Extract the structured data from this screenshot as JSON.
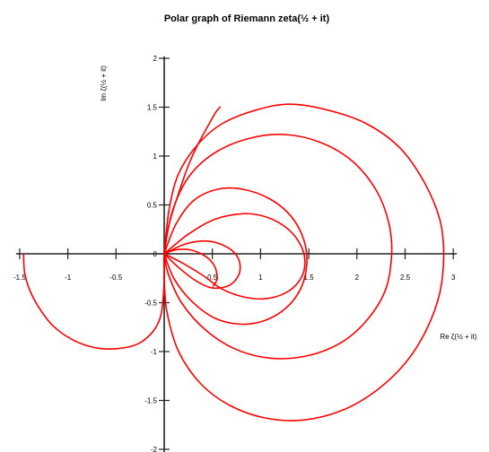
{
  "chart_data": {
    "type": "line",
    "title": "Polar graph of Riemann zeta(½ + it)",
    "xlabel": "Re ζ(½ + it)",
    "ylabel": "Im ζ(½ + it)",
    "xlim": [
      -1.5,
      3
    ],
    "ylim": [
      -2,
      2
    ],
    "xticks": [
      -1.5,
      -1,
      -0.5,
      0,
      0.5,
      1,
      1.5,
      2,
      2.5,
      3
    ],
    "yticks": [
      -2,
      -1.5,
      -1,
      -0.5,
      0,
      0.5,
      1,
      1.5,
      2
    ],
    "xtick_labels": [
      "-1.5",
      "-1",
      "-0.5",
      "",
      "0.5",
      "1",
      "1.5",
      "2",
      "2.5",
      "3"
    ],
    "ytick_labels": [
      "-2",
      "-1.5",
      "-1",
      "-0.5",
      "0",
      "0.5",
      "1",
      "1.5",
      "2"
    ],
    "grid": false,
    "legend": "none",
    "series": [
      {
        "color": "#ff0000",
        "t_range": [
          0,
          34
        ],
        "points": [
          [
            -1.46,
            0.0
          ],
          [
            -1.45,
            -0.18
          ],
          [
            -1.4,
            -0.36
          ],
          [
            -1.3,
            -0.55
          ],
          [
            -1.15,
            -0.74
          ],
          [
            -0.95,
            -0.88
          ],
          [
            -0.72,
            -0.96
          ],
          [
            -0.48,
            -0.97
          ],
          [
            -0.27,
            -0.92
          ],
          [
            -0.12,
            -0.8
          ],
          [
            -0.04,
            -0.65
          ],
          [
            -0.01,
            -0.45
          ],
          [
            0.0,
            -0.25
          ],
          [
            0.0,
            0.0
          ],
          [
            0.05,
            0.3
          ],
          [
            0.15,
            0.62
          ],
          [
            0.25,
            0.9
          ],
          [
            0.35,
            1.12
          ],
          [
            0.45,
            1.3
          ],
          [
            0.53,
            1.44
          ],
          [
            0.58,
            1.5
          ]
        ]
      },
      {
        "color": "#ff0000",
        "points": [
          [
            0.0,
            0.0
          ],
          [
            0.05,
            0.45
          ],
          [
            0.15,
            0.82
          ],
          [
            0.35,
            1.12
          ],
          [
            0.6,
            1.33
          ],
          [
            0.95,
            1.47
          ],
          [
            1.3,
            1.53
          ],
          [
            1.7,
            1.47
          ],
          [
            2.1,
            1.33
          ],
          [
            2.45,
            1.08
          ],
          [
            2.7,
            0.73
          ],
          [
            2.86,
            0.35
          ],
          [
            2.9,
            0.0
          ],
          [
            2.86,
            -0.4
          ],
          [
            2.72,
            -0.78
          ],
          [
            2.5,
            -1.12
          ],
          [
            2.2,
            -1.4
          ],
          [
            1.85,
            -1.6
          ],
          [
            1.45,
            -1.7
          ],
          [
            1.05,
            -1.68
          ],
          [
            0.68,
            -1.55
          ],
          [
            0.38,
            -1.33
          ],
          [
            0.15,
            -1.0
          ],
          [
            0.03,
            -0.6
          ],
          [
            0.0,
            -0.25
          ],
          [
            0.0,
            0.0
          ]
        ]
      },
      {
        "color": "#ff0000",
        "points": [
          [
            0.0,
            0.0
          ],
          [
            0.08,
            0.42
          ],
          [
            0.25,
            0.78
          ],
          [
            0.52,
            1.03
          ],
          [
            0.88,
            1.18
          ],
          [
            1.25,
            1.22
          ],
          [
            1.62,
            1.14
          ],
          [
            1.95,
            0.95
          ],
          [
            2.2,
            0.65
          ],
          [
            2.33,
            0.32
          ],
          [
            2.36,
            0.0
          ],
          [
            2.3,
            -0.36
          ],
          [
            2.12,
            -0.66
          ],
          [
            1.85,
            -0.9
          ],
          [
            1.5,
            -1.04
          ],
          [
            1.12,
            -1.07
          ],
          [
            0.75,
            -0.98
          ],
          [
            0.43,
            -0.78
          ],
          [
            0.18,
            -0.5
          ],
          [
            0.04,
            -0.2
          ],
          [
            0.0,
            0.0
          ]
        ]
      },
      {
        "color": "#ff0000",
        "points": [
          [
            0.0,
            0.0
          ],
          [
            0.12,
            0.3
          ],
          [
            0.3,
            0.54
          ],
          [
            0.55,
            0.66
          ],
          [
            0.82,
            0.66
          ],
          [
            1.1,
            0.56
          ],
          [
            1.32,
            0.38
          ],
          [
            1.45,
            0.14
          ],
          [
            1.48,
            -0.1
          ],
          [
            1.42,
            -0.35
          ],
          [
            1.27,
            -0.55
          ],
          [
            1.05,
            -0.68
          ],
          [
            0.8,
            -0.72
          ],
          [
            0.53,
            -0.66
          ],
          [
            0.28,
            -0.48
          ],
          [
            0.1,
            -0.25
          ],
          [
            0.0,
            0.0
          ]
        ]
      },
      {
        "color": "#ff0000",
        "points": [
          [
            0.0,
            0.0
          ],
          [
            0.25,
            0.2
          ],
          [
            0.52,
            0.35
          ],
          [
            0.82,
            0.41
          ],
          [
            1.08,
            0.37
          ],
          [
            1.3,
            0.24
          ],
          [
            1.43,
            0.06
          ],
          [
            1.46,
            -0.12
          ],
          [
            1.4,
            -0.28
          ],
          [
            1.26,
            -0.4
          ],
          [
            1.05,
            -0.46
          ],
          [
            0.82,
            -0.44
          ],
          [
            0.6,
            -0.36
          ],
          [
            0.4,
            -0.22
          ],
          [
            0.2,
            -0.1
          ],
          [
            0.0,
            0.0
          ]
        ]
      },
      {
        "color": "#ff0000",
        "points": [
          [
            0.0,
            0.0
          ],
          [
            0.22,
            0.1
          ],
          [
            0.45,
            0.13
          ],
          [
            0.65,
            0.07
          ],
          [
            0.77,
            -0.05
          ],
          [
            0.78,
            -0.2
          ],
          [
            0.68,
            -0.32
          ],
          [
            0.5,
            -0.35
          ],
          [
            0.32,
            -0.27
          ],
          [
            0.15,
            -0.14
          ],
          [
            0.0,
            0.0
          ]
        ]
      },
      {
        "color": "#ff0000",
        "points": [
          [
            0.0,
            0.0
          ],
          [
            0.12,
            0.04
          ],
          [
            0.27,
            0.04
          ],
          [
            0.42,
            -0.02
          ],
          [
            0.52,
            -0.12
          ],
          [
            0.55,
            -0.25
          ],
          [
            0.51,
            -0.33
          ]
        ]
      }
    ]
  }
}
